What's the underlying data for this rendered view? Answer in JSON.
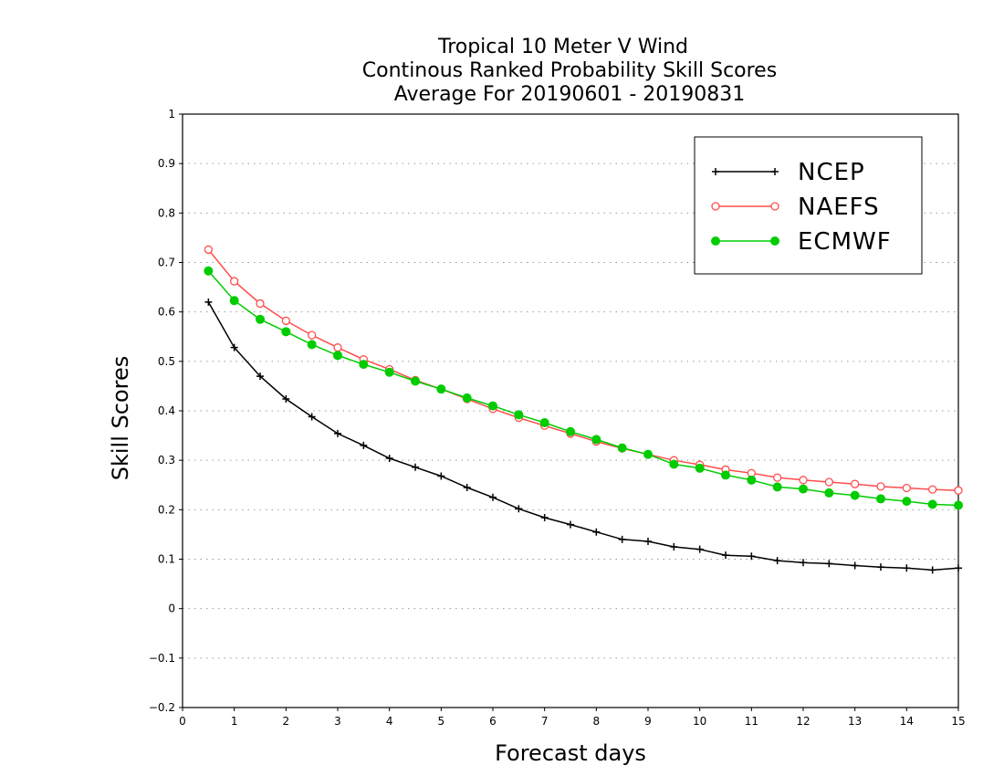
{
  "chart_data": {
    "type": "line",
    "title": [
      "Tropical 10 Meter V Wind",
      "Continous Ranked Probability Skill Scores",
      "Average For 20190601 - 20190831"
    ],
    "xlabel": "Forecast days",
    "ylabel": "Skill Scores",
    "xlim": [
      0,
      15
    ],
    "ylim": [
      -0.2,
      1
    ],
    "xticks": [
      "0",
      "1",
      "2",
      "3",
      "4",
      "5",
      "6",
      "7",
      "8",
      "9",
      "10",
      "11",
      "12",
      "13",
      "14",
      "15"
    ],
    "yticks": [
      "1",
      "0.9",
      "0.8",
      "0.7",
      "0.6",
      "0.5",
      "0.4",
      "0.3",
      "0.2",
      "0.1",
      "0",
      "-0.1",
      "-0.2"
    ],
    "grid": "horizontal dotted",
    "legend_position": "top-right",
    "x": [
      0.5,
      1,
      1.5,
      2,
      2.5,
      3,
      3.5,
      4,
      4.5,
      5,
      5.5,
      6,
      6.5,
      7,
      7.5,
      8,
      8.5,
      9,
      9.5,
      10,
      10.5,
      11,
      11.5,
      12,
      12.5,
      13,
      13.5,
      14,
      14.5,
      15
    ],
    "series": [
      {
        "name": "NCEP",
        "color": "#000000",
        "marker": "plus",
        "values": [
          0.62,
          0.528,
          0.47,
          0.424,
          0.388,
          0.354,
          0.33,
          0.304,
          0.286,
          0.268,
          0.245,
          0.225,
          0.202,
          0.184,
          0.17,
          0.155,
          0.14,
          0.136,
          0.125,
          0.12,
          0.108,
          0.106,
          0.097,
          0.093,
          0.091,
          0.087,
          0.084,
          0.082,
          0.078,
          0.082
        ]
      },
      {
        "name": "NAEFS",
        "color": "#ff4d4d",
        "marker": "open-circle",
        "values": [
          0.726,
          0.662,
          0.617,
          0.582,
          0.553,
          0.528,
          0.504,
          0.484,
          0.462,
          0.444,
          0.424,
          0.404,
          0.386,
          0.37,
          0.354,
          0.338,
          0.324,
          0.312,
          0.3,
          0.291,
          0.281,
          0.274,
          0.265,
          0.26,
          0.256,
          0.252,
          0.247,
          0.244,
          0.241,
          0.239
        ]
      },
      {
        "name": "ECMWF",
        "color": "#00cc00",
        "marker": "filled-circle",
        "values": [
          0.683,
          0.623,
          0.585,
          0.56,
          0.534,
          0.512,
          0.494,
          0.478,
          0.46,
          0.444,
          0.426,
          0.41,
          0.392,
          0.376,
          0.358,
          0.342,
          0.325,
          0.312,
          0.292,
          0.284,
          0.27,
          0.26,
          0.246,
          0.242,
          0.234,
          0.229,
          0.222,
          0.217,
          0.211,
          0.209
        ]
      }
    ]
  }
}
